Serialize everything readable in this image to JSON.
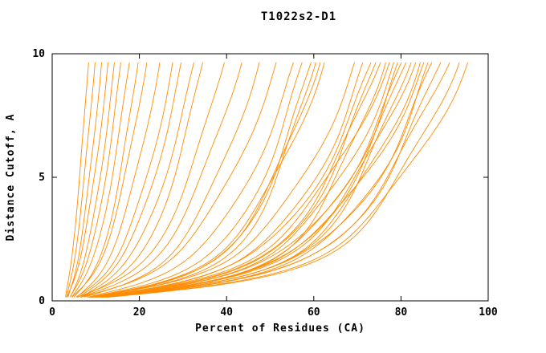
{
  "window": {
    "title": "T1022s2-D1"
  },
  "chart_data": {
    "type": "line",
    "title": "T1022s2-D1",
    "xlabel": "Percent of Residues (CA)",
    "ylabel": "Distance Cutoff, A",
    "xlim": [
      0,
      100
    ],
    "ylim": [
      0,
      10
    ],
    "xticks": [
      0,
      20,
      40,
      60,
      80,
      100
    ],
    "yticks": [
      0,
      5,
      10
    ],
    "grid": false,
    "legend": "none",
    "line_color": "#ff8c00",
    "note": "Each curve is a model accuracy profile; sampled as x = x_start + (x_end - x_start) * f(y/10) with shape exponent, y from 0 to 10 Angstroms.",
    "series": [
      {
        "x_start": 3.0,
        "x_end": 8.5,
        "shape": 0.75
      },
      {
        "x_start": 3.2,
        "x_end": 10.0,
        "shape": 0.7
      },
      {
        "x_start": 3.5,
        "x_end": 11.5,
        "shape": 0.65
      },
      {
        "x_start": 3.2,
        "x_end": 13.0,
        "shape": 0.6
      },
      {
        "x_start": 4.0,
        "x_end": 14.5,
        "shape": 0.6
      },
      {
        "x_start": 3.8,
        "x_end": 16.0,
        "shape": 0.55
      },
      {
        "x_start": 4.2,
        "x_end": 18.0,
        "shape": 0.55
      },
      {
        "x_start": 4.5,
        "x_end": 20.0,
        "shape": 0.5
      },
      {
        "x_start": 4.0,
        "x_end": 22.0,
        "shape": 0.5
      },
      {
        "x_start": 5.0,
        "x_end": 25.0,
        "shape": 0.5
      },
      {
        "x_start": 4.5,
        "x_end": 28.0,
        "shape": 0.45
      },
      {
        "x_start": 5.0,
        "x_end": 30.0,
        "shape": 0.45
      },
      {
        "x_start": 5.5,
        "x_end": 33.0,
        "shape": 0.45
      },
      {
        "x_start": 5.0,
        "x_end": 35.0,
        "shape": 0.4
      },
      {
        "x_start": 4.0,
        "x_end": 40.0,
        "shape": 0.4
      },
      {
        "x_start": 4.5,
        "x_end": 44.0,
        "shape": 0.4
      },
      {
        "x_start": 5.0,
        "x_end": 48.0,
        "shape": 0.38
      },
      {
        "x_start": 4.0,
        "x_end": 52.0,
        "shape": 0.38
      },
      {
        "x_start": 5.0,
        "x_end": 56.0,
        "shape": 0.35
      },
      {
        "x_start": 4.5,
        "x_end": 58.0,
        "shape": 0.3
      },
      {
        "x_start": 5.0,
        "x_end": 60.0,
        "shape": 0.28
      },
      {
        "x_start": 4.0,
        "x_end": 61.0,
        "shape": 0.26
      },
      {
        "x_start": 4.5,
        "x_end": 62.0,
        "shape": 0.3
      },
      {
        "x_start": 5.0,
        "x_end": 63.0,
        "shape": 0.32
      },
      {
        "x_start": 3.5,
        "x_end": 70.0,
        "shape": 0.3
      },
      {
        "x_start": 4.0,
        "x_end": 72.0,
        "shape": 0.28
      },
      {
        "x_start": 4.5,
        "x_end": 74.0,
        "shape": 0.3
      },
      {
        "x_start": 3.8,
        "x_end": 75.0,
        "shape": 0.26
      },
      {
        "x_start": 4.2,
        "x_end": 76.0,
        "shape": 0.28
      },
      {
        "x_start": 4.6,
        "x_end": 77.0,
        "shape": 0.24
      },
      {
        "x_start": 3.6,
        "x_end": 78.0,
        "shape": 0.3
      },
      {
        "x_start": 4.0,
        "x_end": 79.0,
        "shape": 0.27
      },
      {
        "x_start": 4.4,
        "x_end": 80.0,
        "shape": 0.25
      },
      {
        "x_start": 4.8,
        "x_end": 81.0,
        "shape": 0.28
      },
      {
        "x_start": 3.7,
        "x_end": 82.0,
        "shape": 0.26
      },
      {
        "x_start": 4.1,
        "x_end": 83.0,
        "shape": 0.24
      },
      {
        "x_start": 4.5,
        "x_end": 84.0,
        "shape": 0.27
      },
      {
        "x_start": 3.9,
        "x_end": 85.0,
        "shape": 0.25
      },
      {
        "x_start": 4.3,
        "x_end": 86.0,
        "shape": 0.28
      },
      {
        "x_start": 4.7,
        "x_end": 87.0,
        "shape": 0.24
      },
      {
        "x_start": 4.0,
        "x_end": 88.0,
        "shape": 0.26
      },
      {
        "x_start": 4.4,
        "x_end": 90.0,
        "shape": 0.25
      },
      {
        "x_start": 4.8,
        "x_end": 92.0,
        "shape": 0.27
      },
      {
        "x_start": 4.2,
        "x_end": 94.0,
        "shape": 0.24
      },
      {
        "x_start": 4.6,
        "x_end": 96.0,
        "shape": 0.26
      }
    ]
  }
}
